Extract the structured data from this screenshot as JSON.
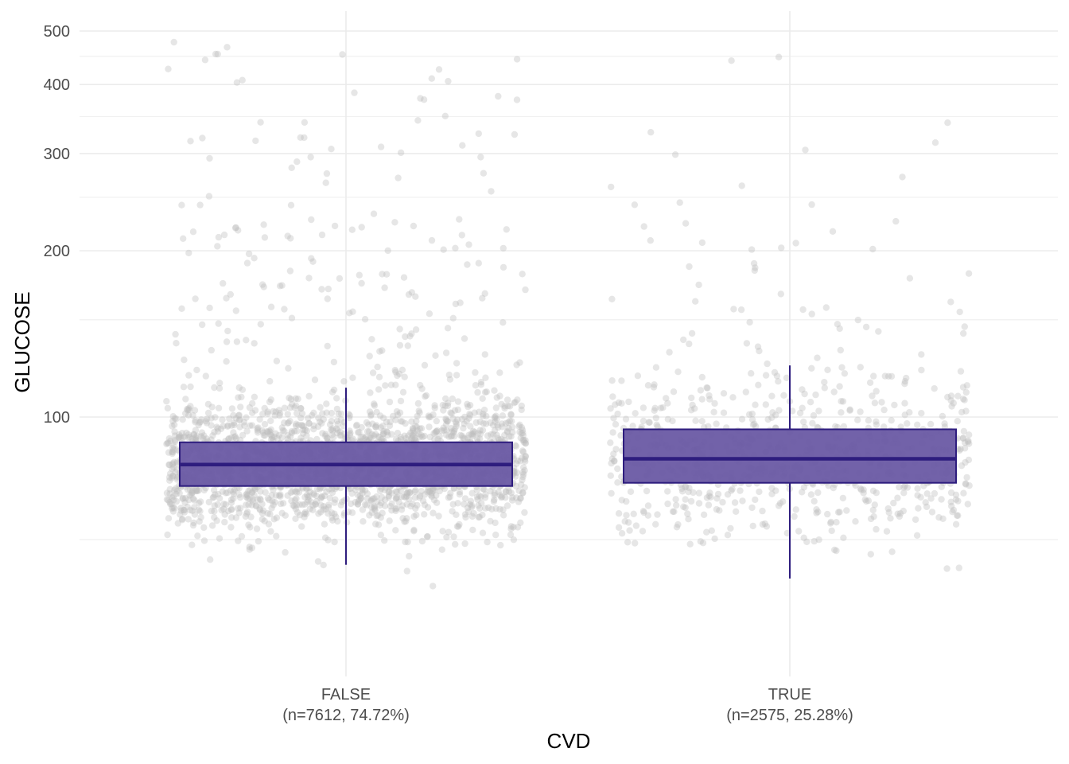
{
  "chart_data": {
    "type": "box",
    "xlabel": "CVD",
    "ylabel": "GLUCOSE",
    "y_scale": "log",
    "ylim": [
      47,
      530
    ],
    "y_ticks": [
      {
        "value": 500,
        "label": "500"
      },
      {
        "value": 400,
        "label": "400"
      },
      {
        "value": 300,
        "label": "300"
      },
      {
        "value": 200,
        "label": "200"
      },
      {
        "value": 100,
        "label": "100"
      }
    ],
    "y_minor_gridlines": [
      450,
      350,
      250,
      150,
      60
    ],
    "grid": true,
    "legend": "none",
    "colors": {
      "box_fill": "#6a5aa4",
      "box_line": "#2e1d7e",
      "points": "#bdbdbd",
      "grid": "#ebebeb"
    },
    "categories": [
      {
        "key": "FALSE",
        "label_line1": "FALSE",
        "label_line2": "(n=7612, 74.72%)",
        "n": 7612,
        "box": {
          "whisker_low": 54,
          "q1": 75,
          "median": 82,
          "q3": 90,
          "whisker_high": 113
        }
      },
      {
        "key": "TRUE",
        "label_line1": "TRUE",
        "label_line2": "(n=2575, 25.28%)",
        "n": 2575,
        "box": {
          "whisker_low": 51,
          "q1": 76,
          "median": 84,
          "q3": 95,
          "whisker_high": 124
        }
      }
    ]
  }
}
